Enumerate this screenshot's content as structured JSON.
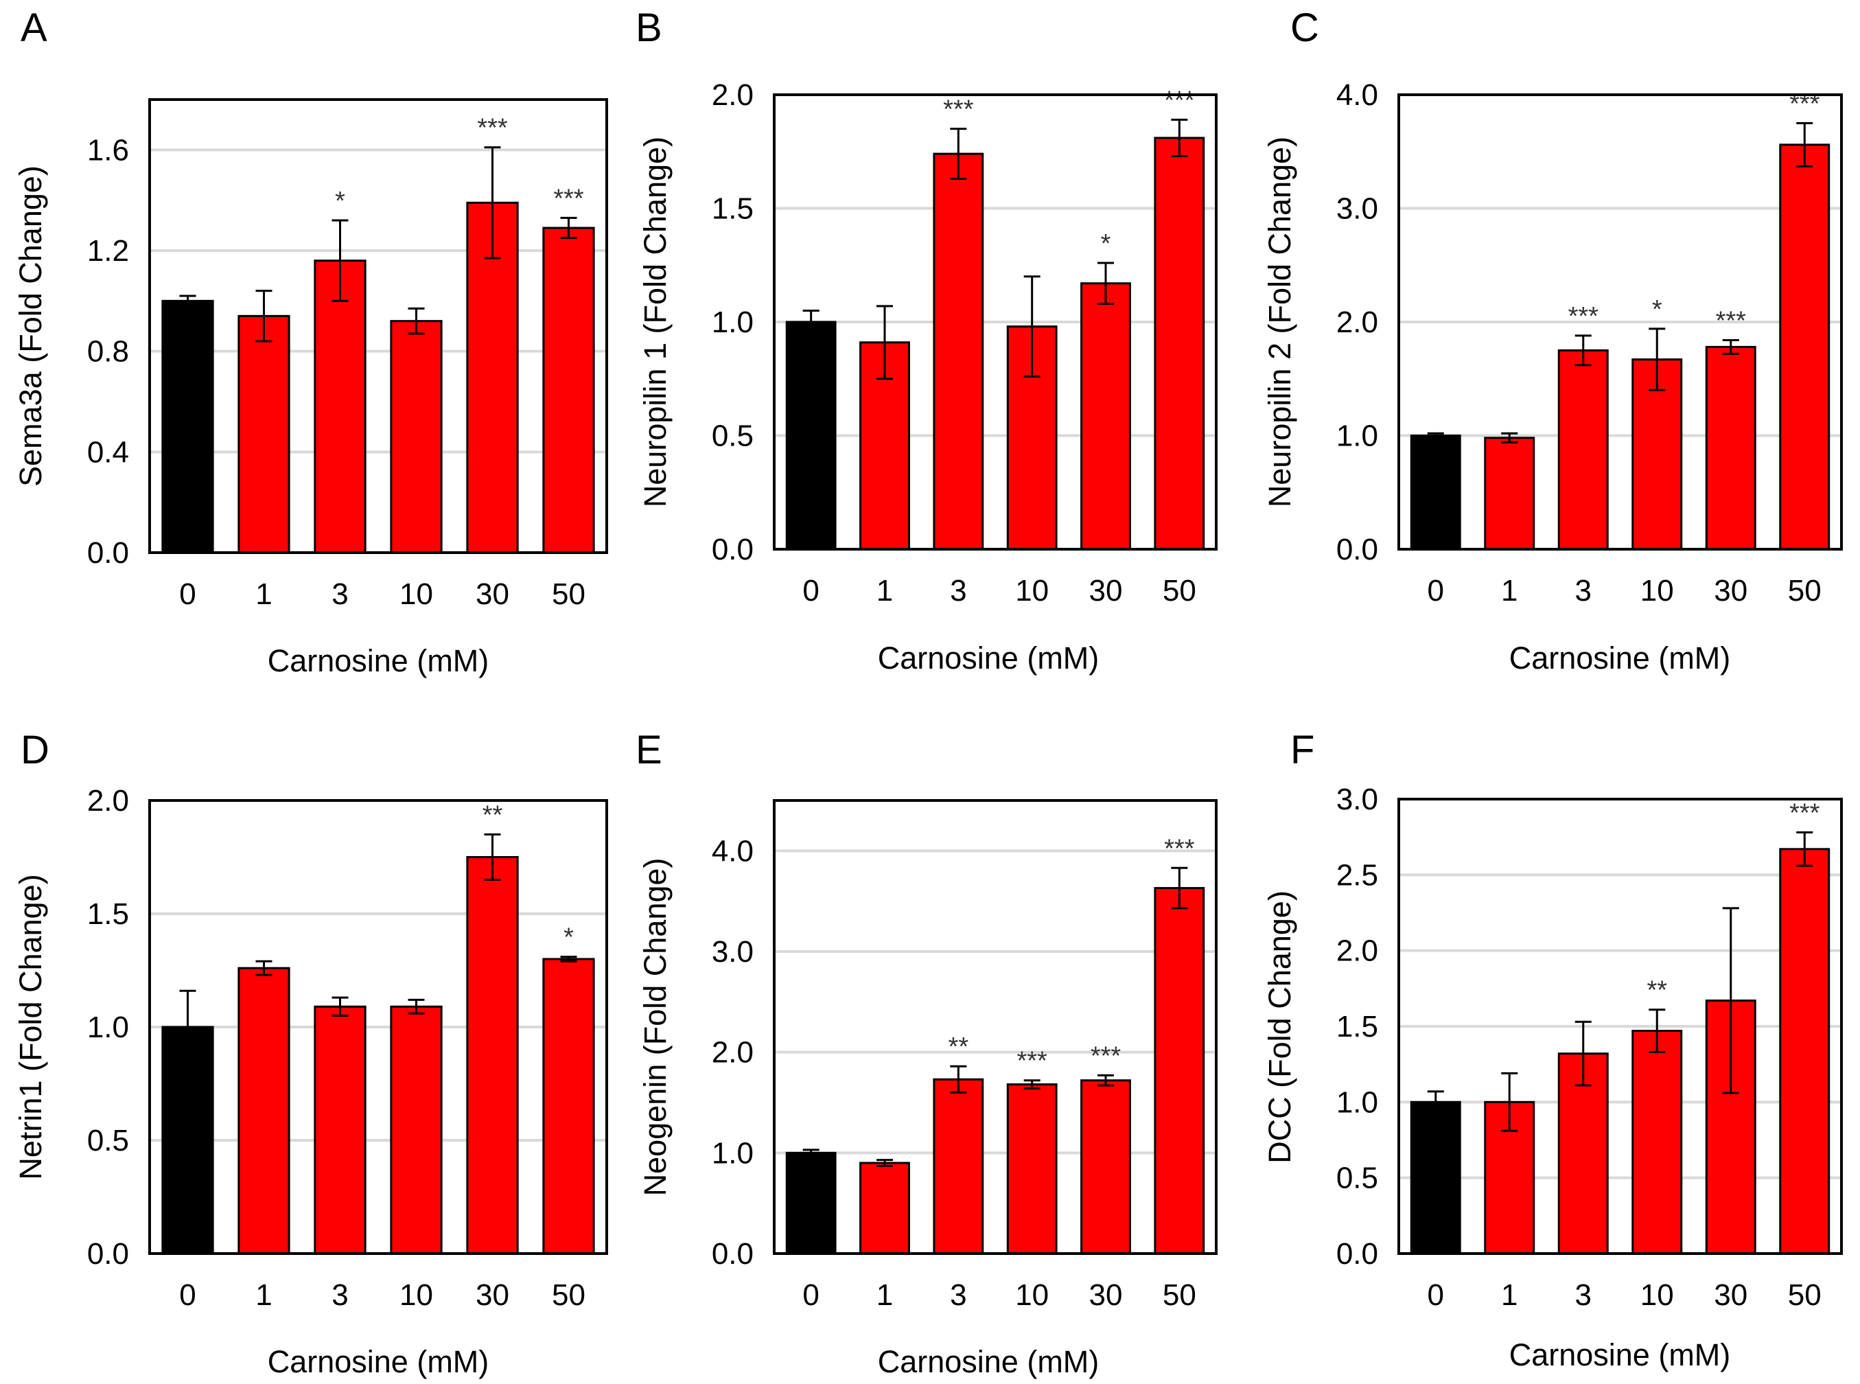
{
  "figure": {
    "type": "multi-panel bar chart"
  },
  "colors": {
    "control": "#000000",
    "treated": "#ff0000",
    "grid": "#d9d9d9",
    "axis": "#000000"
  },
  "chart_data": [
    {
      "panel": "A",
      "type": "bar",
      "ylabel": "Sema3a (Fold Change)",
      "xlabel": "Carnosine (mM)",
      "categories": [
        "0",
        "1",
        "3",
        "10",
        "30",
        "50"
      ],
      "values": [
        1.0,
        0.94,
        1.16,
        0.92,
        1.39,
        1.29
      ],
      "errors": [
        0.02,
        0.1,
        0.16,
        0.05,
        0.22,
        0.04
      ],
      "significance": [
        "",
        "",
        "*",
        "",
        "***",
        "***"
      ],
      "ylim": [
        0,
        1.8
      ],
      "yticks": [
        0,
        0.4,
        0.8,
        1.2,
        1.6
      ],
      "ytick_labels": [
        "0.0",
        "0.4",
        "0.8",
        "1.2",
        "1.6"
      ]
    },
    {
      "panel": "B",
      "type": "bar",
      "ylabel": "Neuropilin 1 (Fold Change)",
      "xlabel": "Carnosine (mM)",
      "categories": [
        "0",
        "1",
        "3",
        "10",
        "30",
        "50"
      ],
      "values": [
        1.0,
        0.91,
        1.74,
        0.98,
        1.17,
        1.81
      ],
      "errors": [
        0.05,
        0.16,
        0.11,
        0.22,
        0.09,
        0.08
      ],
      "significance": [
        "",
        "",
        "***",
        "",
        "*",
        "***"
      ],
      "ylim": [
        0,
        2.0
      ],
      "yticks": [
        0,
        0.5,
        1.0,
        1.5,
        2.0
      ],
      "ytick_labels": [
        "0.0",
        "0.5",
        "1.0",
        "1.5",
        "2.0"
      ]
    },
    {
      "panel": "C",
      "type": "bar",
      "ylabel": "Neuropilin 2 (Fold Change)",
      "xlabel": "Carnosine (mM)",
      "categories": [
        "0",
        "1",
        "3",
        "10",
        "30",
        "50"
      ],
      "values": [
        1.0,
        0.98,
        1.75,
        1.67,
        1.78,
        3.56
      ],
      "errors": [
        0.02,
        0.04,
        0.13,
        0.27,
        0.06,
        0.19
      ],
      "significance": [
        "",
        "",
        "***",
        "*",
        "***",
        "***"
      ],
      "ylim": [
        0,
        4.0
      ],
      "yticks": [
        0,
        1.0,
        2.0,
        3.0,
        4.0
      ],
      "ytick_labels": [
        "0.0",
        "1.0",
        "2.0",
        "3.0",
        "4.0"
      ]
    },
    {
      "panel": "D",
      "type": "bar",
      "ylabel": "Netrin1 (Fold Change)",
      "xlabel": "Carnosine (mM)",
      "categories": [
        "0",
        "1",
        "3",
        "10",
        "30",
        "50"
      ],
      "values": [
        1.0,
        1.26,
        1.09,
        1.09,
        1.75,
        1.3
      ],
      "errors": [
        0.16,
        0.03,
        0.04,
        0.03,
        0.1,
        0.01
      ],
      "significance": [
        "",
        "",
        "",
        "",
        "**",
        "*"
      ],
      "ylim": [
        0,
        2.0
      ],
      "yticks": [
        0,
        0.5,
        1.0,
        1.5,
        2.0
      ],
      "ytick_labels": [
        "0.0",
        "0.5",
        "1.0",
        "1.5",
        "2.0"
      ]
    },
    {
      "panel": "E",
      "type": "bar",
      "ylabel": "Neogenin (Fold Change)",
      "xlabel": "Carnosine (mM)",
      "categories": [
        "0",
        "1",
        "3",
        "10",
        "30",
        "50"
      ],
      "values": [
        1.0,
        0.9,
        1.73,
        1.68,
        1.72,
        3.63
      ],
      "errors": [
        0.03,
        0.03,
        0.13,
        0.04,
        0.05,
        0.2
      ],
      "significance": [
        "",
        "",
        "**",
        "***",
        "***",
        "***"
      ],
      "ylim": [
        0,
        4.5
      ],
      "yticks": [
        0,
        1.0,
        2.0,
        3.0,
        4.0
      ],
      "ytick_labels": [
        "0.0",
        "1.0",
        "2.0",
        "3.0",
        "4.0"
      ]
    },
    {
      "panel": "F",
      "type": "bar",
      "ylabel": "DCC (Fold Change)",
      "xlabel": "Carnosine (mM)",
      "categories": [
        "0",
        "1",
        "3",
        "10",
        "30",
        "50"
      ],
      "values": [
        1.0,
        1.0,
        1.32,
        1.47,
        1.67,
        2.67
      ],
      "errors": [
        0.07,
        0.19,
        0.21,
        0.14,
        0.61,
        0.11
      ],
      "significance": [
        "",
        "",
        "",
        "**",
        "",
        "***"
      ],
      "ylim": [
        0,
        3.0
      ],
      "yticks": [
        0,
        0.5,
        1.0,
        1.5,
        2.0,
        2.5,
        3.0
      ],
      "ytick_labels": [
        "0.0",
        "0.5",
        "1.0",
        "1.5",
        "2.0",
        "2.5",
        "3.0"
      ]
    }
  ]
}
